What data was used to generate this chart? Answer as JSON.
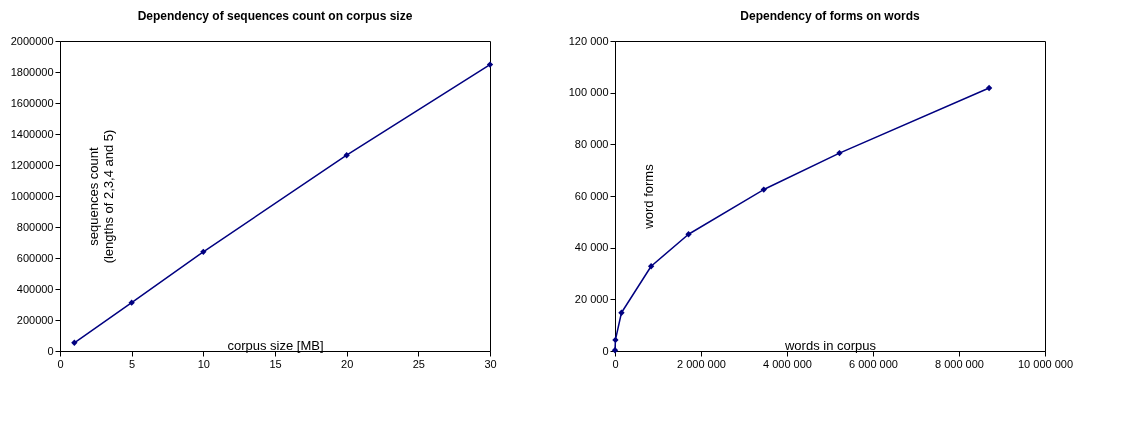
{
  "chart_data": [
    {
      "type": "line",
      "title": "Dependency of sequences count on corpus size",
      "xlabel": "corpus size [MB]",
      "ylabel": "sequences count\n(lengths of  2,3,4 and 5)",
      "x": [
        1,
        5,
        10,
        20,
        30
      ],
      "series": [
        {
          "color": "#000080",
          "values": [
            53000,
            312000,
            640000,
            1263000,
            1848000
          ]
        }
      ],
      "xlim": [
        0,
        30
      ],
      "xticks": [
        0,
        5,
        10,
        15,
        20,
        25,
        30
      ],
      "ylim": [
        0,
        2000000
      ],
      "yticks": [
        0,
        200000,
        400000,
        600000,
        800000,
        1000000,
        1200000,
        1400000,
        1600000,
        1800000,
        2000000
      ],
      "marker": "diamond",
      "line_style": "solid",
      "grid": false,
      "legend": false
    },
    {
      "type": "line",
      "title": "Dependency of forms on words",
      "xlabel": "words in corpus",
      "ylabel": "word forms",
      "x": [
        0,
        10000,
        150000,
        840000,
        1710000,
        3460000,
        5220000,
        8700000
      ],
      "series": [
        {
          "color": "#000080",
          "values": [
            300,
            4300,
            14800,
            32800,
            45200,
            62500,
            76600,
            101800
          ]
        }
      ],
      "xlim": [
        0,
        10000000
      ],
      "xticks": [
        0,
        {
          "value": 2000000,
          "label": "2 000 000"
        },
        {
          "value": 4000000,
          "label": "4 000 000"
        },
        {
          "value": 6000000,
          "label": "6 000 000"
        },
        {
          "value": 8000000,
          "label": "8 000 000"
        },
        {
          "value": 10000000,
          "label": "10 000 000"
        }
      ],
      "ylim": [
        0,
        120000
      ],
      "yticks": [
        0,
        {
          "value": 20000,
          "label": "20 000"
        },
        {
          "value": 40000,
          "label": "40 000"
        },
        {
          "value": 60000,
          "label": "60 000"
        },
        {
          "value": 80000,
          "label": "80 000"
        },
        {
          "value": 100000,
          "label": "100 000"
        },
        {
          "value": 120000,
          "label": "120 000"
        }
      ],
      "marker": "diamond",
      "line_style": "solid",
      "grid": false,
      "legend": false
    }
  ]
}
